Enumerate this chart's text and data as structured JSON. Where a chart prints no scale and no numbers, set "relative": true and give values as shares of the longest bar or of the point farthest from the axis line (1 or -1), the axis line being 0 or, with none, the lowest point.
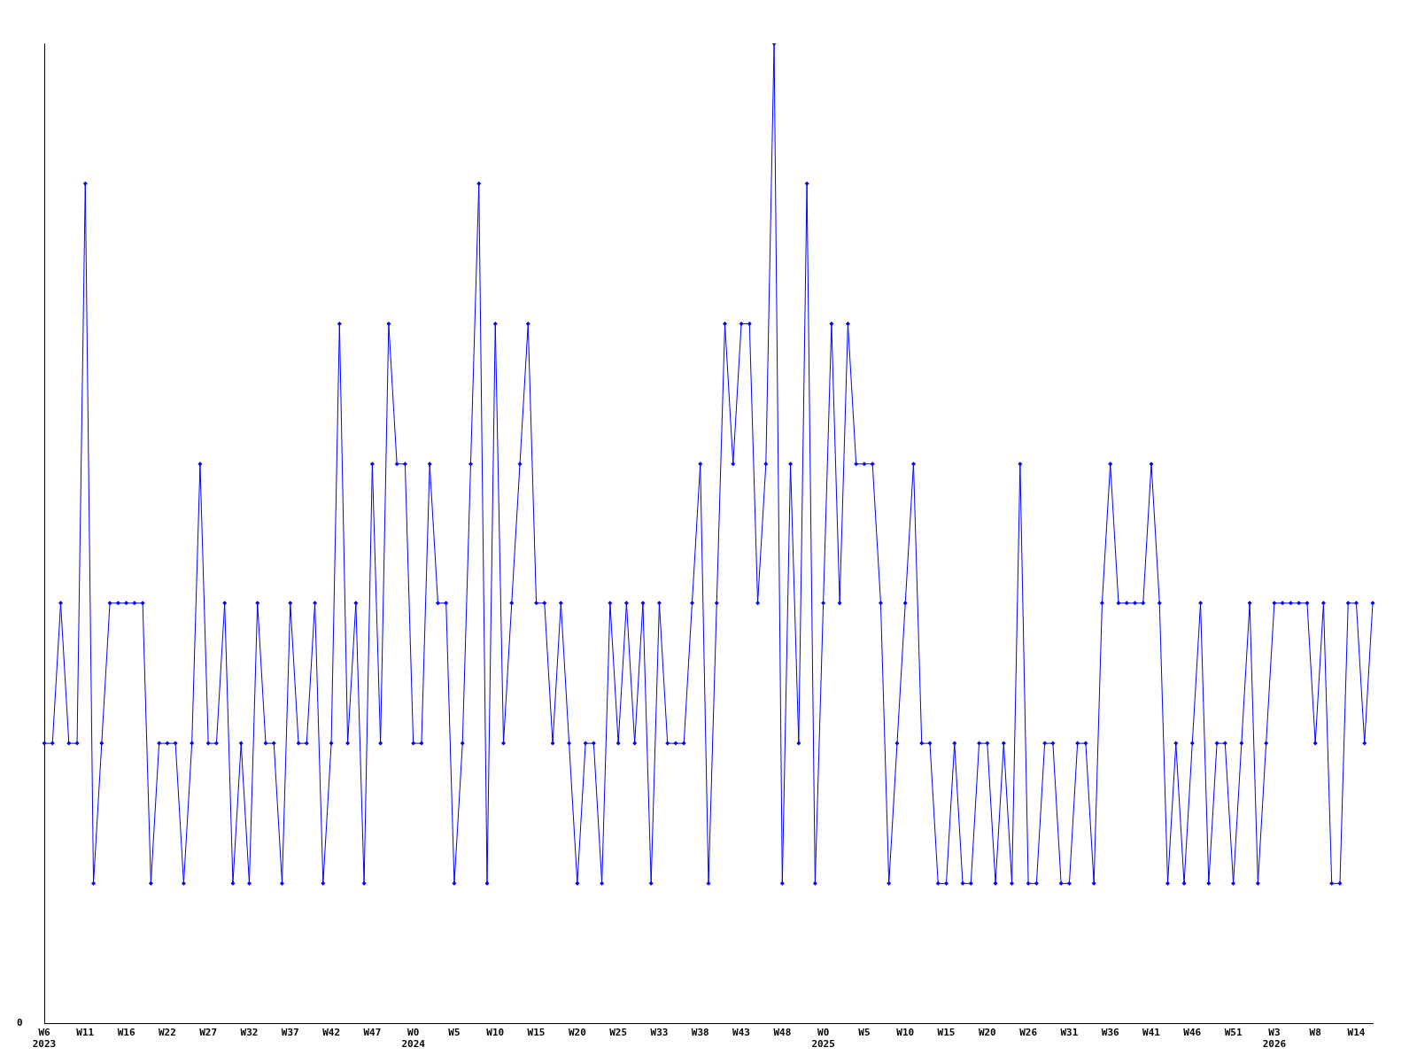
{
  "chart_data": {
    "type": "line",
    "relative": true,
    "legend": false,
    "grid": false,
    "marker": "diamond",
    "line_style": "solid",
    "annotations": [
      "0"
    ],
    "categories": [
      "W6\n2023",
      null,
      null,
      null,
      null,
      "W11",
      null,
      null,
      null,
      null,
      "W16",
      null,
      null,
      null,
      null,
      "W22",
      null,
      null,
      null,
      null,
      "W27",
      null,
      null,
      null,
      null,
      "W32",
      null,
      null,
      null,
      null,
      "W37",
      null,
      null,
      null,
      null,
      "W42",
      null,
      null,
      null,
      null,
      "W47",
      null,
      null,
      null,
      null,
      "W0\n2024",
      null,
      null,
      null,
      null,
      "W5",
      null,
      null,
      null,
      null,
      "W10",
      null,
      null,
      null,
      null,
      "W15",
      null,
      null,
      null,
      null,
      "W20",
      null,
      null,
      null,
      null,
      "W25",
      null,
      null,
      null,
      null,
      "W33",
      null,
      null,
      null,
      null,
      "W38",
      null,
      null,
      null,
      null,
      "W43",
      null,
      null,
      null,
      null,
      "W48",
      null,
      null,
      null,
      null,
      "W0\n2025",
      null,
      null,
      null,
      null,
      "W5",
      null,
      null,
      null,
      null,
      "W10",
      null,
      null,
      null,
      null,
      "W15",
      null,
      null,
      null,
      null,
      "W20",
      null,
      null,
      null,
      null,
      "W26",
      null,
      null,
      null,
      null,
      "W31",
      null,
      null,
      null,
      null,
      "W36",
      null,
      null,
      null,
      null,
      "W41",
      null,
      null,
      null,
      null,
      "W46",
      null,
      null,
      null,
      null,
      "W51",
      null,
      null,
      null,
      null,
      "W3\n2026",
      null,
      null,
      null,
      null,
      "W8",
      null,
      null,
      null,
      null,
      "W14",
      null,
      null
    ],
    "series": [
      {
        "color": "#0000ff",
        "values": [
          0.286,
          0.286,
          0.429,
          0.286,
          0.286,
          0.857,
          0.143,
          0.286,
          0.429,
          0.429,
          0.429,
          0.429,
          0.429,
          0.143,
          0.286,
          0.286,
          0.286,
          0.143,
          0.286,
          0.571,
          0.286,
          0.286,
          0.429,
          0.143,
          0.286,
          0.143,
          0.429,
          0.286,
          0.286,
          0.143,
          0.429,
          0.286,
          0.286,
          0.429,
          0.143,
          0.286,
          0.714,
          0.286,
          0.429,
          0.143,
          0.571,
          0.286,
          0.714,
          0.571,
          0.571,
          0.286,
          0.286,
          0.571,
          0.429,
          0.429,
          0.143,
          0.286,
          0.571,
          0.857,
          0.143,
          0.714,
          0.286,
          0.429,
          0.571,
          0.714,
          0.429,
          0.429,
          0.286,
          0.429,
          0.286,
          0.143,
          0.286,
          0.286,
          0.143,
          0.429,
          0.286,
          0.429,
          0.286,
          0.429,
          0.143,
          0.429,
          0.286,
          0.286,
          0.286,
          0.429,
          0.571,
          0.143,
          0.429,
          0.714,
          0.571,
          0.714,
          0.714,
          0.429,
          0.571,
          1,
          0.143,
          0.571,
          0.286,
          0.857,
          0.143,
          0.429,
          0.714,
          0.429,
          0.714,
          0.571,
          0.571,
          0.571,
          0.429,
          0.143,
          0.286,
          0.429,
          0.571,
          0.286,
          0.286,
          0.143,
          0.143,
          0.286,
          0.143,
          0.143,
          0.286,
          0.286,
          0.143,
          0.286,
          0.143,
          0.571,
          0.143,
          0.143,
          0.286,
          0.286,
          0.143,
          0.143,
          0.286,
          0.286,
          0.143,
          0.429,
          0.571,
          0.429,
          0.429,
          0.429,
          0.429,
          0.571,
          0.429,
          0.143,
          0.286,
          0.143,
          0.286,
          0.429,
          0.143,
          0.286,
          0.286,
          0.143,
          0.286,
          0.429,
          0.143,
          0.286,
          0.429,
          0.429,
          0.429,
          0.429,
          0.429,
          0.286,
          0.429,
          0.143,
          0.143,
          0.429,
          0.429,
          0.286,
          0.429
        ]
      }
    ]
  }
}
